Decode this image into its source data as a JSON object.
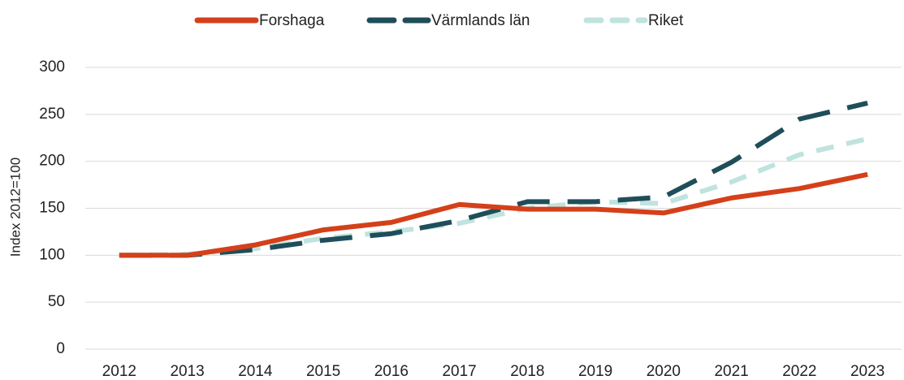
{
  "chart_data": {
    "type": "line",
    "ylabel": "Index 2012=100",
    "categories": [
      "2012",
      "2013",
      "2014",
      "2015",
      "2016",
      "2017",
      "2018",
      "2019",
      "2020",
      "2021",
      "2022",
      "2023"
    ],
    "series": [
      {
        "name": "Forshaga",
        "color": "#d4401a",
        "dash": "solid",
        "values": [
          100,
          100,
          111,
          127,
          135,
          154,
          149,
          149,
          145,
          161,
          171,
          186
        ]
      },
      {
        "name": "Värmlands län",
        "color": "#1f4e5a",
        "dash": "long",
        "values": [
          100,
          100,
          106,
          116,
          123,
          137,
          157,
          157,
          162,
          199,
          245,
          262
        ]
      },
      {
        "name": "Riket",
        "color": "#bfe3de",
        "dash": "short",
        "values": [
          100,
          101,
          107,
          118,
          125,
          134,
          150,
          157,
          155,
          178,
          207,
          224
        ]
      }
    ],
    "ylim": [
      0,
      300
    ],
    "yticks": [
      0,
      50,
      100,
      150,
      200,
      250,
      300
    ],
    "grid": true,
    "legend": "top"
  }
}
